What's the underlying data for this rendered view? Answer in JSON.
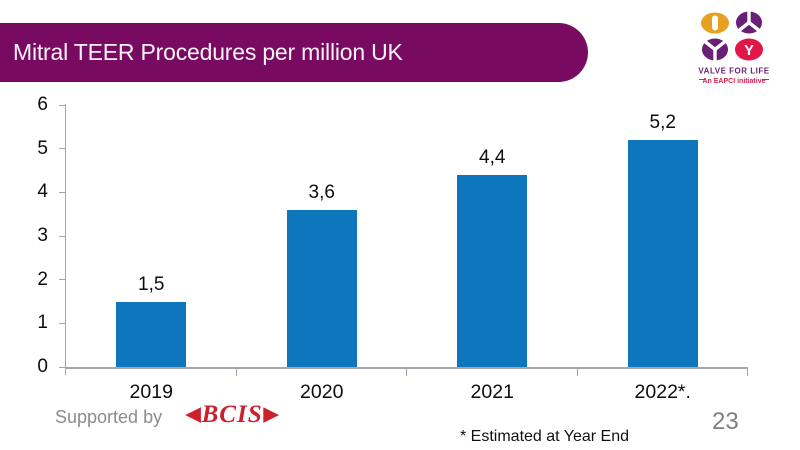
{
  "header": {
    "title": "Mitral TEER Procedures per million UK",
    "banner_color": "#780A62",
    "title_color": "#FBF2F9"
  },
  "logo": {
    "line1": "VALVE FOR LIFE",
    "line2": "An EAPCI initiative",
    "orange": "#E8A11E",
    "purple": "#681F75",
    "crimson": "#E21747",
    "text_purple": "#681F75",
    "text_red": "#D7224E",
    "y_letter": "Y"
  },
  "chart_data": {
    "type": "bar",
    "title": "Mitral TEER Procedures per million UK",
    "categories": [
      "2019",
      "2020",
      "2021",
      "2022*."
    ],
    "values": [
      1.5,
      3.6,
      4.4,
      5.2
    ],
    "value_labels": [
      "1,5",
      "3,6",
      "4,4",
      "5,2"
    ],
    "xlabel": "",
    "ylabel": "",
    "ylim": [
      0,
      6
    ],
    "yticks": [
      0,
      1,
      2,
      3,
      4,
      5,
      6
    ],
    "grid": false,
    "legend": false,
    "bar_color": "#0E76BD",
    "axis_color": "#A3A7AB",
    "label_color": "#0d0d0d"
  },
  "footer": {
    "supported_by": "Supported by",
    "bcis_label": "BCIS",
    "bcis_color": "#CE1F2D",
    "bcis_left_arrow": "◀",
    "bcis_right_arrow": "▶",
    "footnote": "* Estimated at Year End",
    "page_number": "23"
  }
}
